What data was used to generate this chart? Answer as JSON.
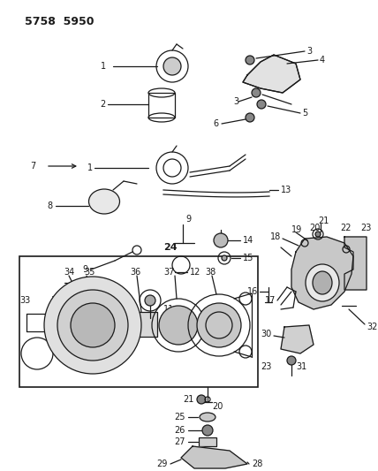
{
  "title": "5758  5950",
  "bg_color": "#ffffff",
  "line_color": "#1a1a1a",
  "fig_width": 4.28,
  "fig_height": 5.33,
  "dpi": 100
}
